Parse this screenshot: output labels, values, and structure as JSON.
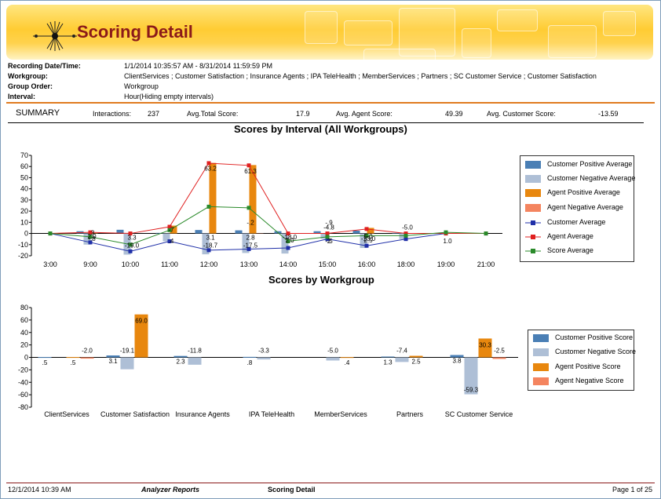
{
  "report": {
    "title": "Scoring Detail"
  },
  "fields": [
    {
      "label": "Recording Date/Time:",
      "value": "1/1/2014 10:35:57 AM - 8/31/2014 11:59:59 PM"
    },
    {
      "label": "Workgroup:",
      "value": "ClientServices ; Customer Satisfaction ; Insurance Agents ; IPA TeleHealth ; MemberServices ; Partners ; SC Customer Service ; Customer Satisfaction"
    },
    {
      "label": "Group Order:",
      "value": "Workgroup"
    },
    {
      "label": "Interval:",
      "value": "Hour(Hiding empty intervals)"
    }
  ],
  "summary": {
    "label": "SUMMARY",
    "interactions_label": "Interactions:",
    "interactions": "237",
    "avg_total_label": "Avg.Total Score:",
    "avg_total": "17.9",
    "avg_agent_label": "Avg. Agent Score:",
    "avg_agent": "49.39",
    "avg_customer_label": "Avg. Customer Score:",
    "avg_customer": "-13.59"
  },
  "colors": {
    "customer_positive": "#4a7fb5",
    "customer_negative": "#aebfd6",
    "agent_positive": "#e8870e",
    "agent_negative": "#f4845f",
    "customer_avg": "#1f2fa8",
    "agent_avg": "#e02020",
    "score_avg": "#2a8a2a",
    "title_red": "#8b1a1a",
    "rule_orange": "#e07b1f"
  },
  "chart_data": [
    {
      "type": "bar",
      "title": "Scores by Interval (All Workgroups)",
      "categories": [
        "3:00",
        "9:00",
        "10:00",
        "11:00",
        "12:00",
        "13:00",
        "14:00",
        "15:00",
        "16:00",
        "18:00",
        "19:00",
        "21:00"
      ],
      "ylim": [
        -20,
        70
      ],
      "yticks": [
        -20,
        -10,
        0,
        10,
        20,
        30,
        40,
        50,
        60,
        70
      ],
      "bar_series": [
        {
          "name": "Customer Positive Average",
          "values": [
            0,
            2.0,
            3.3,
            0.5,
            3.1,
            2.8,
            2.0,
            2.0,
            2.5,
            0.5,
            0,
            0
          ]
        },
        {
          "name": "Customer Negative Average",
          "values": [
            0,
            -10.0,
            -19.0,
            -7.0,
            -18.7,
            -17.5,
            -18.0,
            -4.8,
            -13.0,
            -5.0,
            0,
            0
          ]
        },
        {
          "name": "Agent Positive Average",
          "values": [
            0,
            0.3,
            0,
            7.0,
            63.2,
            61.3,
            0,
            0,
            5.0,
            0,
            0,
            0
          ]
        },
        {
          "name": "Agent Negative Average",
          "values": [
            0,
            0,
            0,
            0,
            0,
            -0.2,
            0,
            0,
            0,
            0,
            0,
            0
          ]
        }
      ],
      "line_series": [
        {
          "name": "Customer Average",
          "values": [
            0,
            -8,
            -16,
            -7,
            -15,
            -14,
            -13,
            -5,
            -11,
            -5,
            0,
            0
          ]
        },
        {
          "name": "Agent Average",
          "values": [
            0,
            1,
            0,
            6,
            63,
            61,
            0,
            0,
            4,
            0,
            0,
            0
          ]
        },
        {
          "name": "Score Average",
          "values": [
            0,
            -3,
            -10,
            3,
            24,
            23,
            -7,
            -3,
            -2,
            -2,
            1,
            0
          ]
        }
      ],
      "data_labels": [
        {
          "i": 1,
          "y": -2.5,
          "text": "2.0"
        },
        {
          "i": 1,
          "y": 0.8,
          "text": ".3"
        },
        {
          "i": 1,
          "y": -4.5,
          "text": "-.8"
        },
        {
          "i": 2,
          "y": -3.5,
          "text": "3.3"
        },
        {
          "i": 2,
          "y": -10.5,
          "text": "-19.0"
        },
        {
          "i": 3,
          "y": 3.5,
          "text": "-7"
        },
        {
          "i": 3,
          "y": -6.5,
          "text": ".4"
        },
        {
          "i": 4,
          "y": -3.5,
          "text": "3.1"
        },
        {
          "i": 4,
          "y": -10.5,
          "text": "-18.7"
        },
        {
          "i": 4,
          "y": 58.5,
          "text": "63.2"
        },
        {
          "i": 5,
          "y": -3.5,
          "text": "2.8"
        },
        {
          "i": 5,
          "y": -10.5,
          "text": "-17.5"
        },
        {
          "i": 5,
          "y": 56.0,
          "text": "61.3"
        },
        {
          "i": 5,
          "y": 10.0,
          "text": "-.2"
        },
        {
          "i": 6,
          "y": -6.0,
          "text": "2.0"
        },
        {
          "i": 6,
          "y": -3.0,
          "text": "-18.0"
        },
        {
          "i": 7,
          "y": -6.5,
          "text": "2"
        },
        {
          "i": 7,
          "y": -6.5,
          "text": "-.5"
        },
        {
          "i": 7,
          "y": 5.5,
          "text": "-4.8"
        },
        {
          "i": 7,
          "y": 10.0,
          "text": "-.9"
        },
        {
          "i": 8,
          "y": -6.0,
          "text": "2.5"
        },
        {
          "i": 8,
          "y": -4.5,
          "text": "-13.0"
        },
        {
          "i": 8,
          "y": -2.5,
          "text": "5.0"
        },
        {
          "i": 9,
          "y": 5.5,
          "text": "-5.0"
        },
        {
          "i": 10,
          "y": -6.5,
          "text": "1.0"
        }
      ]
    },
    {
      "type": "bar",
      "title": "Scores by Workgroup",
      "categories": [
        "ClientServices",
        "Customer Satisfaction",
        "Insurance Agents",
        "IPA TeleHealth",
        "MemberServices",
        "Partners",
        "SC Customer Service"
      ],
      "ylim": [
        -80,
        80
      ],
      "yticks": [
        -80,
        -60,
        -40,
        -20,
        0,
        20,
        40,
        60,
        80
      ],
      "series": [
        {
          "name": "Customer Positive Score",
          "values": [
            0.5,
            3.1,
            2.3,
            0.8,
            0,
            1.3,
            3.8
          ]
        },
        {
          "name": "Customer Negative Score",
          "values": [
            0,
            -19.1,
            -11.8,
            -3.3,
            -5.0,
            -7.4,
            -59.3
          ]
        },
        {
          "name": "Agent Positive Score",
          "values": [
            0.5,
            69.0,
            0,
            0,
            0.4,
            2.5,
            30.3
          ]
        },
        {
          "name": "Agent Negative Score",
          "values": [
            -2.0,
            0,
            0,
            0,
            0,
            0,
            -2.5
          ]
        }
      ],
      "data_labels": [
        {
          "i": 0,
          "s": 0,
          "text": ".5"
        },
        {
          "i": 0,
          "s": 2,
          "text": ".5"
        },
        {
          "i": 0,
          "s": 3,
          "text": "-2.0"
        },
        {
          "i": 1,
          "s": 0,
          "text": "3.1"
        },
        {
          "i": 1,
          "s": 1,
          "text": "-19.1"
        },
        {
          "i": 1,
          "s": 2,
          "text": "69.0"
        },
        {
          "i": 2,
          "s": 0,
          "text": "2.3"
        },
        {
          "i": 2,
          "s": 1,
          "text": "-11.8"
        },
        {
          "i": 3,
          "s": 0,
          "text": ".8"
        },
        {
          "i": 3,
          "s": 1,
          "text": "-3.3"
        },
        {
          "i": 4,
          "s": 1,
          "text": "-5.0"
        },
        {
          "i": 4,
          "s": 2,
          "text": ".4"
        },
        {
          "i": 5,
          "s": 0,
          "text": "1.3"
        },
        {
          "i": 5,
          "s": 1,
          "text": "-7.4"
        },
        {
          "i": 5,
          "s": 2,
          "text": "2.5"
        },
        {
          "i": 6,
          "s": 0,
          "text": "3.8"
        },
        {
          "i": 6,
          "s": 1,
          "text": "-59.3"
        },
        {
          "i": 6,
          "s": 2,
          "text": "30.3"
        },
        {
          "i": 6,
          "s": 3,
          "text": "-2.5"
        }
      ]
    }
  ],
  "legend1": [
    "Customer Positive Average",
    "Customer Negative Average",
    "Agent Positive Average",
    "Agent Negative Average",
    "Customer Average",
    "Agent Average",
    "Score Average"
  ],
  "legend2": [
    "Customer Positive Score",
    "Customer Negative Score",
    "Agent Positive Score",
    "Agent Negative Score"
  ],
  "footer": {
    "printed": "12/1/2014 10:39 AM",
    "app": "Analyzer Reports",
    "report": "Scoring Detail",
    "page": "Page 1 of 25"
  }
}
